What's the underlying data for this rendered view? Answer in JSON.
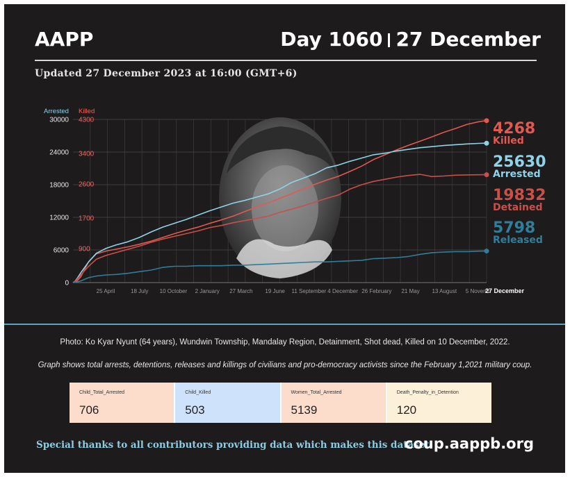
{
  "header": {
    "brand": "AAPP",
    "day": "Day 1060",
    "date": "27 December",
    "updated": "Updated 27 December 2023 at 16:00 (GMT+6)"
  },
  "colors": {
    "arrested": "#8fd3e8",
    "killed": "#e05a52",
    "detained": "#c95048",
    "released": "#2f7f9c",
    "background": "#1d1b1c"
  },
  "chart_data": {
    "type": "line",
    "left_axis": {
      "label": "Arrested",
      "ticks": [
        "0",
        "6000",
        "12000",
        "18000",
        "24000",
        "30000"
      ],
      "ylim": [
        0,
        30000
      ]
    },
    "right_axis": {
      "label": "Killed",
      "ticks": [
        "900",
        "1700",
        "2600",
        "3400",
        "4300"
      ],
      "ylim": [
        0,
        4300
      ]
    },
    "x_ticks": [
      "25 April",
      "18 July",
      "10 October",
      "2 January",
      "27 March",
      "19 June",
      "11 September",
      "4 December",
      "26 February",
      "21 May",
      "13 August",
      "5 Novemb",
      "27 December"
    ],
    "x": [
      0,
      5,
      10,
      20,
      40,
      60,
      85,
      110,
      140,
      170,
      200,
      230,
      260,
      290,
      320,
      350,
      380,
      410,
      440,
      470,
      500,
      530,
      560,
      590,
      620,
      650,
      680,
      710,
      740,
      770,
      800,
      830,
      860,
      890,
      920,
      950,
      980,
      1010,
      1040,
      1060
    ],
    "series": [
      {
        "name": "Killed",
        "axis": "right",
        "end_value": 4268,
        "values": [
          0,
          15,
          40,
          150,
          550,
          760,
          830,
          880,
          940,
          1010,
          1090,
          1190,
          1290,
          1380,
          1460,
          1560,
          1650,
          1750,
          1870,
          1990,
          2100,
          2220,
          2340,
          2470,
          2590,
          2700,
          2800,
          2930,
          3070,
          3240,
          3370,
          3500,
          3620,
          3730,
          3840,
          3960,
          4060,
          4170,
          4240,
          4268
        ]
      },
      {
        "name": "Arrested",
        "axis": "left",
        "end_value": 25630,
        "values": [
          0,
          200,
          700,
          1800,
          3800,
          5400,
          6300,
          6900,
          7500,
          8300,
          9300,
          10200,
          10900,
          11600,
          12400,
          13200,
          13900,
          14600,
          15100,
          15700,
          16300,
          17200,
          18400,
          19200,
          20000,
          21100,
          21600,
          22300,
          22900,
          23500,
          23800,
          24200,
          24500,
          24800,
          25000,
          25200,
          25350,
          25500,
          25600,
          25630
        ]
      },
      {
        "name": "Detained",
        "axis": "left",
        "end_value": 19832,
        "values": [
          0,
          150,
          550,
          1400,
          3000,
          4300,
          5000,
          5500,
          6100,
          6700,
          7400,
          8000,
          8500,
          9000,
          9500,
          10100,
          10500,
          11000,
          11400,
          11800,
          12200,
          12900,
          13500,
          14100,
          14800,
          15500,
          16100,
          17200,
          18000,
          18600,
          19000,
          19400,
          19700,
          19900,
          19500,
          19600,
          19750,
          19800,
          19830,
          19832
        ]
      },
      {
        "name": "Released",
        "axis": "left",
        "end_value": 5798,
        "values": [
          0,
          40,
          120,
          300,
          900,
          1200,
          1400,
          1500,
          1700,
          2000,
          2300,
          2800,
          3000,
          3000,
          3100,
          3100,
          3100,
          3200,
          3200,
          3300,
          3400,
          3500,
          3600,
          3700,
          3800,
          3800,
          3900,
          4000,
          4100,
          4400,
          4500,
          4600,
          4800,
          5200,
          5500,
          5600,
          5700,
          5700,
          5780,
          5798
        ]
      }
    ],
    "end_labels": [
      {
        "value": "4268",
        "name": "Killed"
      },
      {
        "value": "25630",
        "name": "Arrested"
      },
      {
        "value": "19832",
        "name": "Detained"
      },
      {
        "value": "5798",
        "name": "Released"
      }
    ],
    "grid": true
  },
  "photo_caption": "Photo: Ko Kyar Nyunt (64 years), Wundwin Township, Mandalay Region, Detainment, Shot dead, Killed on 10 December, 2022.",
  "graph_caption": "Graph shows total arrests, detentions, releases and killings of civilians and pro-democracy activists since the February 1,2021 military coup.",
  "stats": [
    {
      "label": "Child_Total_Arrested",
      "value": "706",
      "color": "#fcdccb"
    },
    {
      "label": "Child_Killed",
      "value": "503",
      "color": "#cfe2fb"
    },
    {
      "label": "Women_Total_Arrested",
      "value": "5139",
      "color": "#fcdccb"
    },
    {
      "label": "Death_Penalty_in_Detention",
      "value": "120",
      "color": "#fdf0d9"
    }
  ],
  "footer": {
    "thanks": "Special thanks to all contributors providing data which makes this dataset.",
    "url": "coup.aappb.org"
  }
}
